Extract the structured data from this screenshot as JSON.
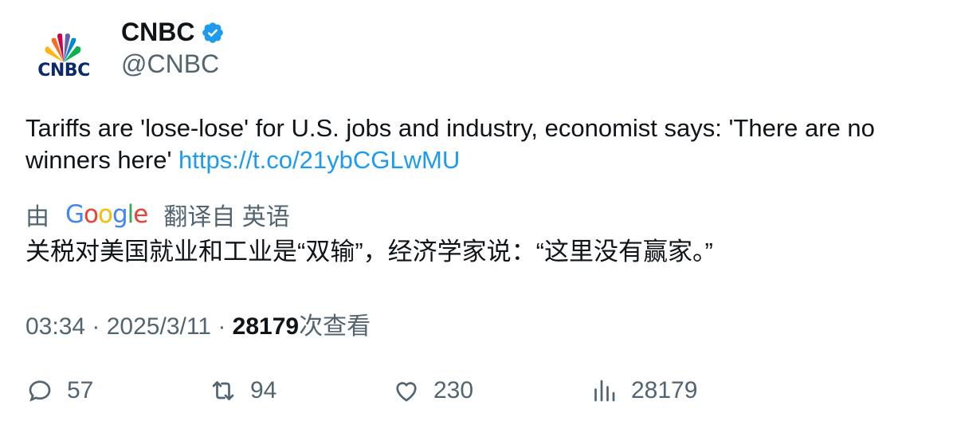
{
  "author": {
    "display_name": "CNBC",
    "handle": "@CNBC",
    "avatar_text": "CNBC",
    "verified": true
  },
  "tweet": {
    "text": "Tariffs are 'lose-lose' for U.S. jobs and industry, economist says: 'There are no winners here' ",
    "link": "https://t.co/21ybCGLwMU"
  },
  "translation": {
    "prefix": "由",
    "provider_logo": "Google",
    "suffix": "翻译自 英语",
    "text": "关税对美国就业和工业是“双输”，经济学家说：“这里没有赢家。”"
  },
  "meta": {
    "time": "03:34",
    "sep1": " · ",
    "date": "2025/3/11",
    "sep2": " · ",
    "views": "28179",
    "views_label": "次查看"
  },
  "actions": {
    "replies": "57",
    "retweets": "94",
    "likes": "230",
    "views": "28179"
  },
  "colors": {
    "link": "#1d9bf0",
    "secondary_text": "#536471",
    "primary_text": "#0f1419",
    "verified": "#1d9bf0"
  }
}
